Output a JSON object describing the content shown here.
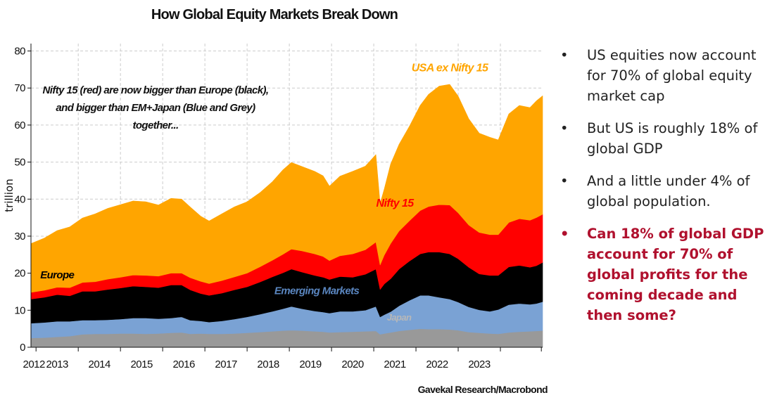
{
  "chart_data": {
    "type": "area",
    "stacked": true,
    "title": "How Global Equity Markets Break Down",
    "xlabel": "",
    "ylabel": "trillion",
    "ylim": [
      0,
      82
    ],
    "xlim": [
      2011.88,
      2024.0
    ],
    "yticks": [
      0,
      10,
      20,
      30,
      40,
      50,
      60,
      70,
      80
    ],
    "xtick_labels": [
      "2012",
      "2013",
      "2014",
      "2015",
      "2016",
      "2017",
      "2018",
      "2019",
      "2020",
      "2021",
      "2022",
      "2023"
    ],
    "x": [
      2011.88,
      2012.2,
      2012.5,
      2012.8,
      2013.1,
      2013.4,
      2013.7,
      2014.0,
      2014.3,
      2014.6,
      2014.9,
      2015.2,
      2015.45,
      2015.65,
      2015.9,
      2016.1,
      2016.4,
      2016.7,
      2017.0,
      2017.3,
      2017.6,
      2017.85,
      2018.05,
      2018.3,
      2018.6,
      2018.8,
      2018.95,
      2019.2,
      2019.5,
      2019.8,
      2020.05,
      2020.15,
      2020.25,
      2020.4,
      2020.6,
      2020.85,
      2021.1,
      2021.3,
      2021.55,
      2021.8,
      2022.0,
      2022.25,
      2022.5,
      2022.75,
      2022.95,
      2023.2,
      2023.45,
      2023.7,
      2023.85,
      2024.0
    ],
    "series": [
      {
        "name": "Japan",
        "color": "#999999",
        "values": [
          2.5,
          2.6,
          2.8,
          3.0,
          3.5,
          3.6,
          3.6,
          3.7,
          3.7,
          3.6,
          3.7,
          3.9,
          4.0,
          3.6,
          3.7,
          3.6,
          3.6,
          3.7,
          3.9,
          4.1,
          4.3,
          4.5,
          4.6,
          4.5,
          4.3,
          4.2,
          4.0,
          4.1,
          4.2,
          4.3,
          4.4,
          3.5,
          3.7,
          4.0,
          4.4,
          4.7,
          5.0,
          4.9,
          4.9,
          4.8,
          4.6,
          4.1,
          3.9,
          3.7,
          3.6,
          4.0,
          4.2,
          4.3,
          4.4,
          4.5
        ]
      },
      {
        "name": "Emerging Markets",
        "color": "#7aa2d4",
        "values": [
          4.0,
          4.1,
          4.2,
          4.0,
          3.8,
          3.7,
          3.8,
          3.9,
          4.2,
          4.3,
          4.0,
          4.0,
          4.2,
          3.7,
          3.4,
          3.2,
          3.5,
          3.9,
          4.3,
          4.8,
          5.4,
          5.9,
          6.4,
          5.9,
          5.5,
          5.3,
          5.2,
          5.6,
          5.5,
          5.7,
          6.6,
          4.7,
          5.1,
          5.6,
          6.8,
          8.0,
          9.0,
          9.1,
          8.6,
          8.2,
          7.6,
          6.8,
          6.2,
          6.0,
          6.6,
          7.5,
          7.6,
          7.3,
          7.4,
          7.8
        ]
      },
      {
        "name": "Europe",
        "color": "#000000",
        "values": [
          6.5,
          6.8,
          7.2,
          6.9,
          7.8,
          7.8,
          8.2,
          8.4,
          8.6,
          8.4,
          8.4,
          8.9,
          8.6,
          8.2,
          7.4,
          7.2,
          7.5,
          7.9,
          8.1,
          8.7,
          9.3,
          9.7,
          10.1,
          9.9,
          9.6,
          9.4,
          9.1,
          9.4,
          9.2,
          9.7,
          10.1,
          7.4,
          8.3,
          8.9,
          9.9,
          10.6,
          11.2,
          11.7,
          12.2,
          12.2,
          11.7,
          10.7,
          9.7,
          9.7,
          9.2,
          10.2,
          10.3,
          10.0,
          10.2,
          10.6
        ]
      },
      {
        "name": "Nifty 15",
        "color": "#ff0000",
        "values": [
          1.8,
          1.9,
          2.0,
          2.2,
          2.4,
          2.6,
          2.8,
          2.9,
          3.0,
          3.1,
          3.1,
          3.2,
          3.2,
          3.3,
          3.3,
          3.2,
          3.4,
          3.5,
          3.7,
          4.1,
          4.5,
          5.0,
          5.4,
          5.7,
          5.8,
          5.6,
          5.1,
          5.6,
          6.3,
          6.6,
          7.3,
          6.6,
          7.8,
          9.5,
          10.3,
          10.9,
          11.7,
          12.3,
          12.8,
          13.2,
          12.4,
          11.4,
          11.2,
          11.0,
          11.0,
          12.0,
          12.6,
          12.7,
          13.0,
          13.0
        ]
      },
      {
        "name": "USA ex Nifty 15",
        "color": "#ffa500",
        "values": [
          13.2,
          14.1,
          15.3,
          16.4,
          17.4,
          18.3,
          19.1,
          19.6,
          20.0,
          19.9,
          19.2,
          20.2,
          20.0,
          19.1,
          17.6,
          16.9,
          18.0,
          18.9,
          19.3,
          20.0,
          21.2,
          22.8,
          23.4,
          22.8,
          22.3,
          21.8,
          20.1,
          21.5,
          22.3,
          22.6,
          23.6,
          16.6,
          17.9,
          21.5,
          23.4,
          25.6,
          28.4,
          30.3,
          32.0,
          32.6,
          31.5,
          28.7,
          26.8,
          26.3,
          25.6,
          29.3,
          30.6,
          30.4,
          31.5,
          32.0
        ]
      }
    ],
    "annotations": [
      {
        "text": "USA ex Nifty 15",
        "color": "#ffa500"
      },
      {
        "text": "Nifty 15",
        "color": "#ff0000"
      },
      {
        "text": "Europe",
        "color": "#000000"
      },
      {
        "text": "Emerging Markets",
        "color": "#5a86c0"
      },
      {
        "text": "Japan",
        "color": "#b8b8b8"
      }
    ],
    "note_lines": [
      "Nifty 15 (red) are now bigger than Europe (black),",
      "and bigger than EM+Japan (Blue and Grey)",
      "together..."
    ],
    "source": "Gavekal Research/Macrobond"
  },
  "bullets": [
    {
      "dot": "•",
      "text": "US equities now account for 70% of global equity market cap",
      "highlight": false
    },
    {
      "dot": "•",
      "text": "But US is roughly 18% of global GDP",
      "highlight": false
    },
    {
      "dot": "•",
      "text": "And a little under 4% of global population.",
      "highlight": false
    },
    {
      "dot": "•",
      "text": "Can 18% of global GDP account for 70% of global profits for the coming decade and then some?",
      "highlight": true
    }
  ]
}
